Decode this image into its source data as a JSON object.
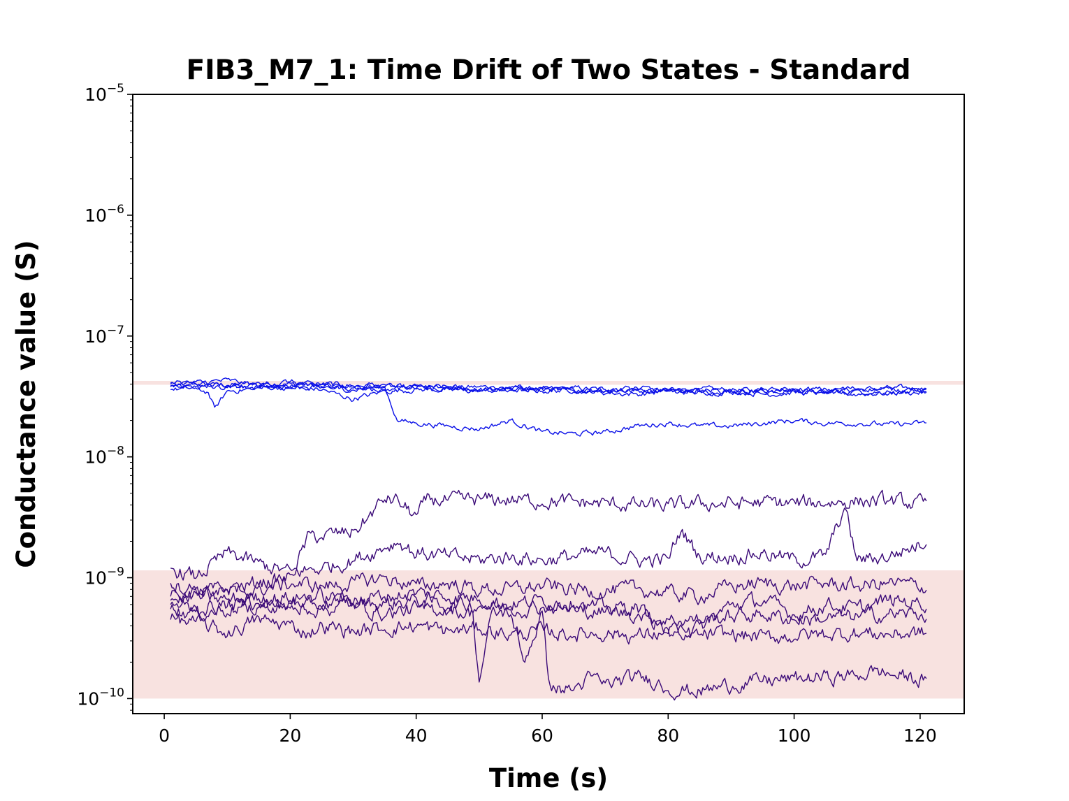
{
  "chart_data": {
    "type": "line",
    "title": "FIB3_M7_1: Time Drift of Two States - Standard",
    "xlabel": "Time (s)",
    "ylabel": "Conductance value (S)",
    "xlim": [
      -5,
      127
    ],
    "ylim": [
      7.5e-11,
      1e-05
    ],
    "yscale": "log",
    "x_ticks": [
      0,
      20,
      40,
      60,
      80,
      100,
      120
    ],
    "y_ticks": [
      {
        "base": "10",
        "exp": "−10",
        "value": 1e-10
      },
      {
        "base": "10",
        "exp": "−9",
        "value": 1e-09
      },
      {
        "base": "10",
        "exp": "−8",
        "value": 1e-08
      },
      {
        "base": "10",
        "exp": "−7",
        "value": 1e-07
      },
      {
        "base": "10",
        "exp": "−6",
        "value": 1e-06
      },
      {
        "base": "10",
        "exp": "−5",
        "value": 1e-05
      }
    ],
    "grid": false,
    "legend": "none",
    "bands": [
      {
        "state": "high",
        "y_range": [
          3.95e-08,
          4.25e-08
        ],
        "color": "#f8e2e0"
      },
      {
        "state": "low",
        "y_range": [
          1e-10,
          1.15e-09
        ],
        "color": "#f8e2e0"
      }
    ],
    "colors": {
      "high_state": "#0a10e8",
      "low_state": "#3b0a78"
    },
    "series": [
      {
        "group": "high",
        "x": [
          1,
          5,
          10,
          15,
          20,
          25,
          30,
          35,
          40,
          45,
          50,
          55,
          60,
          65,
          70,
          75,
          80,
          85,
          90,
          95,
          100,
          105,
          110,
          115,
          121
        ],
        "values": [
          4.1e-08,
          4e-08,
          3.9e-08,
          4.1e-08,
          4e-08,
          3.9e-08,
          3.8e-08,
          3.9e-08,
          3.8e-08,
          3.7e-08,
          3.8e-08,
          3.7e-08,
          3.6e-08,
          3.7e-08,
          3.6e-08,
          3.6e-08,
          3.5e-08,
          3.6e-08,
          3.6e-08,
          3.5e-08,
          3.6e-08,
          3.5e-08,
          3.6e-08,
          3.7e-08,
          3.7e-08
        ]
      },
      {
        "group": "high",
        "x": [
          1,
          5,
          10,
          15,
          20,
          25,
          30,
          35,
          40,
          45,
          50,
          55,
          60,
          65,
          70,
          75,
          80,
          85,
          90,
          95,
          100,
          105,
          110,
          115,
          121
        ],
        "values": [
          3.8e-08,
          3.9e-08,
          4e-08,
          3.8e-08,
          3.9e-08,
          4e-08,
          3.9e-08,
          3.8e-08,
          3.7e-08,
          3.8e-08,
          3.6e-08,
          3.7e-08,
          3.7e-08,
          3.5e-08,
          3.6e-08,
          3.5e-08,
          3.6e-08,
          3.5e-08,
          3.4e-08,
          3.6e-08,
          3.5e-08,
          3.4e-08,
          3.5e-08,
          3.4e-08,
          3.5e-08
        ]
      },
      {
        "group": "high",
        "x": [
          1,
          5,
          7,
          8,
          10,
          15,
          20,
          25,
          30,
          35,
          40,
          45,
          50,
          55,
          60,
          65,
          70,
          75,
          80,
          85,
          90,
          95,
          100,
          105,
          110,
          115,
          121
        ],
        "values": [
          3.6e-08,
          3.7e-08,
          3.4e-08,
          2.5e-08,
          3.5e-08,
          3.7e-08,
          3.8e-08,
          3.6e-08,
          3e-08,
          3.5e-08,
          3.6e-08,
          3.6e-08,
          3.5e-08,
          3.6e-08,
          3.5e-08,
          3.6e-08,
          3.4e-08,
          3.3e-08,
          3.5e-08,
          3.4e-08,
          3.5e-08,
          3.3e-08,
          3.4e-08,
          3.4e-08,
          3.3e-08,
          3.4e-08,
          3.4e-08
        ]
      },
      {
        "group": "high",
        "x": [
          1,
          5,
          10,
          15,
          20,
          25,
          30,
          35,
          37,
          40,
          45,
          50,
          55,
          60,
          65,
          70,
          75,
          80,
          85,
          90,
          95,
          100,
          105,
          110,
          115,
          121
        ],
        "values": [
          4e-08,
          4.1e-08,
          4.3e-08,
          3.9e-08,
          4.2e-08,
          3.8e-08,
          3.6e-08,
          3.8e-08,
          2e-08,
          1.9e-08,
          1.8e-08,
          1.7e-08,
          2e-08,
          1.6e-08,
          1.55e-08,
          1.6e-08,
          1.8e-08,
          1.9e-08,
          1.8e-08,
          1.8e-08,
          1.9e-08,
          2e-08,
          1.9e-08,
          1.9e-08,
          1.85e-08,
          1.9e-08
        ]
      },
      {
        "group": "high",
        "x": [
          1,
          5,
          10,
          15,
          20,
          25,
          30,
          35,
          40,
          45,
          50,
          55,
          60,
          65,
          70,
          75,
          80,
          85,
          90,
          95,
          100,
          105,
          110,
          115,
          121
        ],
        "values": [
          3.9e-08,
          3.8e-08,
          3.7e-08,
          3.9e-08,
          3.7e-08,
          3.8e-08,
          3.7e-08,
          3.6e-08,
          3.8e-08,
          3.7e-08,
          3.7e-08,
          3.6e-08,
          3.6e-08,
          3.5e-08,
          3.6e-08,
          3.7e-08,
          3.5e-08,
          3.6e-08,
          3.5e-08,
          3.5e-08,
          3.6e-08,
          3.6e-08,
          3.7e-08,
          3.6e-08,
          3.6e-08
        ]
      },
      {
        "group": "low",
        "x": [
          1,
          5,
          10,
          15,
          20,
          23,
          25,
          30,
          32,
          35,
          37,
          40,
          42,
          45,
          50,
          55,
          60,
          65,
          70,
          75,
          80,
          85,
          90,
          95,
          100,
          105,
          110,
          115,
          121
        ],
        "values": [
          7e-10,
          7.5e-10,
          8e-10,
          9e-10,
          1e-09,
          2.2e-09,
          2.2e-09,
          2.4e-09,
          3e-09,
          4.5e-09,
          4.3e-09,
          3.2e-09,
          4.5e-09,
          4.3e-09,
          4.4e-09,
          4.4e-09,
          4.3e-09,
          4.2e-09,
          4.1e-09,
          4e-09,
          3.9e-09,
          4.1e-09,
          4.1e-09,
          4.2e-09,
          4.1e-09,
          4.2e-09,
          4.3e-09,
          4.3e-09,
          4e-09
        ]
      },
      {
        "group": "low",
        "x": [
          1,
          5,
          10,
          15,
          20,
          25,
          30,
          35,
          37,
          40,
          45,
          50,
          55,
          60,
          65,
          70,
          75,
          80,
          82,
          85,
          90,
          95,
          100,
          105,
          108,
          110,
          115,
          121
        ],
        "values": [
          1.2e-09,
          1e-09,
          1.6e-09,
          1.3e-09,
          1.1e-09,
          1.2e-09,
          1.4e-09,
          1.8e-09,
          2e-09,
          1.6e-09,
          1.5e-09,
          1.4e-09,
          1.5e-09,
          1.4e-09,
          1.5e-09,
          1.6e-09,
          1.4e-09,
          1.4e-09,
          2.5e-09,
          1.5e-09,
          1.5e-09,
          1.6e-09,
          1.4e-09,
          1.5e-09,
          3.8e-09,
          1.4e-09,
          1.5e-09,
          2e-09
        ]
      },
      {
        "group": "low",
        "x": [
          1,
          5,
          10,
          15,
          20,
          25,
          30,
          35,
          40,
          45,
          50,
          55,
          60,
          65,
          70,
          75,
          80,
          85,
          90,
          95,
          100,
          105,
          110,
          115,
          121
        ],
        "values": [
          9e-10,
          8e-10,
          7.5e-10,
          8e-10,
          9e-10,
          8.5e-10,
          9e-10,
          1e-09,
          8.5e-10,
          9e-10,
          8e-10,
          8e-10,
          8.5e-10,
          8e-10,
          7.8e-10,
          8e-10,
          7.5e-10,
          7e-10,
          8.5e-10,
          9e-10,
          8.5e-10,
          9e-10,
          8.5e-10,
          9e-10,
          8.5e-10
        ]
      },
      {
        "group": "low",
        "x": [
          1,
          5,
          10,
          15,
          20,
          25,
          30,
          35,
          40,
          45,
          50,
          55,
          60,
          65,
          70,
          75,
          80,
          85,
          90,
          95,
          100,
          105,
          110,
          115,
          121
        ],
        "values": [
          6.5e-10,
          7e-10,
          6.5e-10,
          7e-10,
          6.8e-10,
          7e-10,
          6.5e-10,
          7e-10,
          7.5e-10,
          7e-10,
          6.8e-10,
          6e-10,
          6.5e-10,
          6.2e-10,
          5.5e-10,
          5.8e-10,
          3.5e-10,
          3.8e-10,
          6e-10,
          6.5e-10,
          5e-10,
          6e-10,
          5.5e-10,
          6.5e-10,
          6.2e-10
        ]
      },
      {
        "group": "low",
        "x": [
          1,
          5,
          10,
          15,
          20,
          25,
          30,
          35,
          40,
          45,
          50,
          55,
          60,
          65,
          70,
          75,
          80,
          85,
          90,
          95,
          100,
          105,
          110,
          115,
          121
        ],
        "values": [
          5.5e-10,
          5e-10,
          5.5e-10,
          6e-10,
          5.5e-10,
          6e-10,
          6.5e-10,
          6e-10,
          6.5e-10,
          6e-10,
          6e-10,
          5.5e-10,
          5.8e-10,
          5.5e-10,
          5.2e-10,
          5e-10,
          4.5e-10,
          4.5e-10,
          4.8e-10,
          5e-10,
          4.5e-10,
          4.6e-10,
          4.8e-10,
          5e-10,
          5e-10
        ]
      },
      {
        "group": "low",
        "x": [
          1,
          5,
          10,
          15,
          20,
          23,
          25,
          30,
          35,
          40,
          45,
          50,
          55,
          60,
          65,
          70,
          75,
          80,
          85,
          90,
          95,
          100,
          105,
          110,
          115,
          121
        ],
        "values": [
          4.5e-10,
          4.2e-10,
          3.5e-10,
          4.5e-10,
          4e-10,
          3.5e-10,
          4e-10,
          3.6e-10,
          3.8e-10,
          4e-10,
          3.6e-10,
          3.8e-10,
          3.4e-10,
          3.6e-10,
          3.4e-10,
          3.5e-10,
          3.3e-10,
          3.5e-10,
          3.3e-10,
          3.4e-10,
          3.2e-10,
          3.3e-10,
          3.4e-10,
          3.5e-10,
          3.4e-10,
          3.5e-10
        ]
      },
      {
        "group": "low",
        "x": [
          1,
          5,
          10,
          15,
          20,
          25,
          30,
          35,
          40,
          45,
          49,
          50,
          52,
          55,
          57,
          60,
          61,
          62,
          65,
          68,
          70,
          75,
          78,
          80,
          85,
          90,
          95,
          100,
          105,
          110,
          113,
          115,
          121
        ],
        "values": [
          6e-10,
          5.5e-10,
          6e-10,
          5.8e-10,
          6e-10,
          5.5e-10,
          6e-10,
          5e-10,
          5.5e-10,
          5.5e-10,
          5e-10,
          1.4e-10,
          5e-10,
          5.2e-10,
          2e-10,
          5e-10,
          1.5e-10,
          1.2e-10,
          1.2e-10,
          1.5e-10,
          1.3e-10,
          1.5e-10,
          1.4e-10,
          1.2e-10,
          1.15e-10,
          1.3e-10,
          1.4e-10,
          1.45e-10,
          1.5e-10,
          1.55e-10,
          1.7e-10,
          1.6e-10,
          1.4e-10
        ]
      }
    ]
  }
}
